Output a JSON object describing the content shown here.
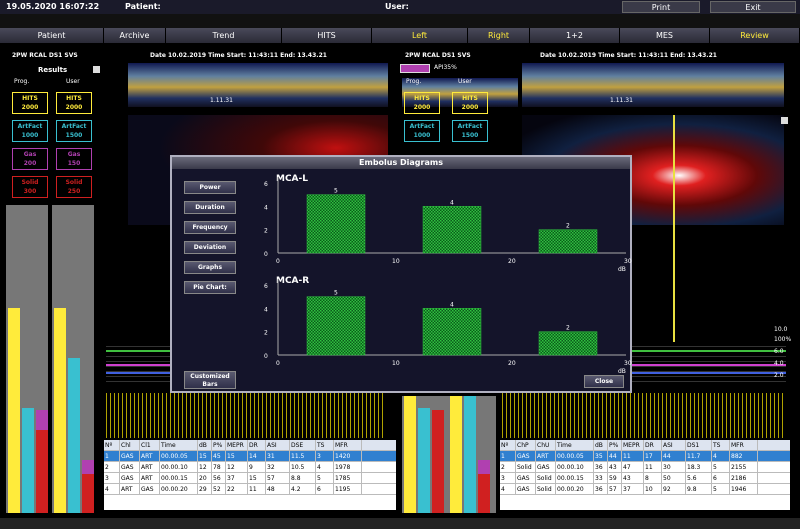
{
  "top": {
    "datetime": "19.05.2020 16:07:22",
    "patient": "Patient:",
    "user": "User:",
    "print": "Print",
    "exit": "Exit"
  },
  "nav": [
    "Patient",
    "Archive",
    "Trend",
    "HITS",
    "Left",
    "Right",
    "1+2",
    "MES",
    "Review"
  ],
  "left_panel": {
    "probe": "2PW RCAL DS1 SVS",
    "date": "Date 10.02.2019 Time Start: 11:43:11 End: 13.43.21",
    "time_marker": "1.11.31",
    "results": "Results",
    "prog": "Prog.",
    "user": "User"
  },
  "right_panel": {
    "probe": "2PW RCAL DS1 SVS",
    "date": "Date 10.02.2019 Time Start: 11:43:11 End: 13.43.21",
    "time_marker": "1.11.31",
    "api": "API35%",
    "prog": "Prog.",
    "user": "User"
  },
  "counters_left": [
    {
      "label": "HITS",
      "prog": "2000",
      "user": "2000",
      "color": "#ffeb3b"
    },
    {
      "label": "ArtFact",
      "prog": "1000",
      "user": "1500",
      "color": "#39c0d0"
    },
    {
      "label": "Gas",
      "prog": "200",
      "user": "150",
      "color": "#b040b0"
    },
    {
      "label": "Solid",
      "prog": "300",
      "user": "250",
      "color": "#d02020"
    }
  ],
  "counters_right": [
    {
      "label": "HITS",
      "prog": "2000",
      "user": "2000"
    },
    {
      "label": "ArtFact",
      "prog": "1000",
      "user": "1500"
    }
  ],
  "scale": [
    "10.0",
    "100%",
    "6.0",
    "4.0",
    "2.0"
  ],
  "table_left": {
    "headers": [
      "Nº",
      "Chl",
      "Cl1",
      "Time",
      "dB",
      "P%",
      "MEPR",
      "DR",
      "ASI",
      "DSE",
      "TS",
      "MFR"
    ],
    "rows": [
      [
        "1",
        "GAS",
        "ART",
        "00.00.05",
        "15",
        "45",
        "15",
        "14",
        "31",
        "11.5",
        "3",
        "1420"
      ],
      [
        "2",
        "GAS",
        "ART",
        "00.00.10",
        "12",
        "78",
        "12",
        "9",
        "32",
        "10.5",
        "4",
        "1978"
      ],
      [
        "3",
        "GAS",
        "ART",
        "00.00.15",
        "20",
        "56",
        "37",
        "15",
        "57",
        "8.8",
        "5",
        "1785"
      ],
      [
        "4",
        "ART",
        "GAS",
        "00.00.20",
        "29",
        "52",
        "22",
        "11",
        "48",
        "4.2",
        "6",
        "1195"
      ]
    ]
  },
  "table_right": {
    "headers": [
      "Nº",
      "ChP",
      "ChU",
      "Time",
      "dB",
      "P%",
      "MEPR",
      "DR",
      "ASI",
      "DS1",
      "TS",
      "MFR"
    ],
    "rows": [
      [
        "1",
        "GAS",
        "ART",
        "00.00.05",
        "35",
        "44",
        "11",
        "17",
        "44",
        "11.7",
        "4",
        "882"
      ],
      [
        "2",
        "Solid",
        "GAS",
        "00.00.10",
        "36",
        "43",
        "47",
        "11",
        "30",
        "18.3",
        "5",
        "2155"
      ],
      [
        "3",
        "GAS",
        "Solid",
        "00.00.15",
        "33",
        "59",
        "43",
        "8",
        "50",
        "5.6",
        "6",
        "2186"
      ],
      [
        "4",
        "GAS",
        "Solid",
        "00.00.20",
        "36",
        "57",
        "37",
        "10",
        "92",
        "9.8",
        "5",
        "1946"
      ]
    ]
  },
  "dialog": {
    "title": "Embolus Diagrams",
    "buttons": [
      "Power",
      "Duration",
      "Frequency",
      "Deviation",
      "Graphs",
      "Pie Chart:"
    ],
    "bottom_left": "Customized Bars",
    "close": "Close"
  },
  "chart_data": [
    {
      "type": "bar",
      "title": "MCA-L",
      "categories": [
        "0-10",
        "10-20",
        "20-30"
      ],
      "values": [
        5,
        4,
        2
      ],
      "xticks": [
        "0",
        "10",
        "20",
        "30"
      ],
      "xunit": "dB",
      "yticks": [
        "0",
        "2",
        "4",
        "6"
      ],
      "ylim": [
        0,
        6
      ]
    },
    {
      "type": "bar",
      "title": "MCA-R",
      "categories": [
        "0-10",
        "10-20",
        "20-30"
      ],
      "values": [
        5,
        4,
        2
      ],
      "xticks": [
        "0",
        "10",
        "20",
        "30"
      ],
      "xunit": "dB",
      "yticks": [
        "0",
        "2",
        "4",
        "6"
      ],
      "ylim": [
        0,
        6
      ]
    }
  ]
}
